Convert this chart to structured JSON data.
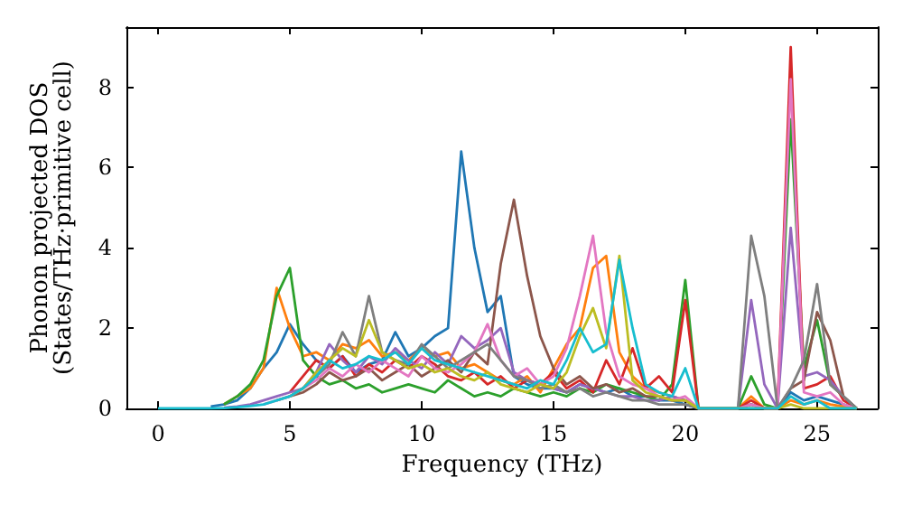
{
  "chart_data": {
    "type": "line",
    "xlabel": "Frequency (THz)",
    "ylabel": "Phonon projected DOS\n(States/THz·primitive cell)",
    "x": [
      0,
      0.5,
      1,
      1.5,
      2,
      2.5,
      3,
      3.5,
      4,
      4.5,
      5,
      5.5,
      6,
      6.5,
      7,
      7.5,
      8,
      8.5,
      9,
      9.5,
      10,
      10.5,
      11,
      11.5,
      12,
      12.5,
      13,
      13.5,
      14,
      14.5,
      15,
      15.5,
      16,
      16.5,
      17,
      17.5,
      18,
      18.5,
      19,
      19.5,
      20,
      20.5,
      21,
      21.5,
      22,
      22.5,
      23,
      23.5,
      24,
      24.5,
      25,
      25.5,
      26,
      26.5
    ],
    "xlim": [
      -1.2,
      27.3
    ],
    "xticks": [
      0,
      5,
      10,
      15,
      20,
      25
    ],
    "ylim": [
      0,
      9.5
    ],
    "yticks": [
      0,
      2,
      4,
      6,
      8
    ],
    "grid": false,
    "marker": "none",
    "series": [
      {
        "color": "#1f77b4",
        "values": [
          null,
          null,
          null,
          null,
          0.05,
          0.1,
          0.2,
          0.5,
          1.0,
          1.4,
          2.1,
          1.6,
          1.2,
          1.0,
          1.3,
          0.9,
          1.1,
          1.2,
          1.9,
          1.3,
          1.5,
          1.8,
          2.0,
          6.4,
          4.0,
          2.4,
          2.8,
          0.8,
          0.6,
          0.5,
          0.5,
          0.4,
          0.6,
          0.5,
          0.4,
          0.5,
          0.3,
          0.3,
          0.2,
          0.2,
          0.1,
          0,
          0,
          0,
          0,
          0.1,
          0,
          0,
          0.4,
          0.2,
          0.3,
          0.2,
          0.1,
          0
        ]
      },
      {
        "color": "#ff7f0e",
        "values": [
          null,
          null,
          null,
          null,
          null,
          0.1,
          0.3,
          0.5,
          1.0,
          3.0,
          2.0,
          1.3,
          1.4,
          1.2,
          1.6,
          1.5,
          1.7,
          1.3,
          1.4,
          1.2,
          1.5,
          1.3,
          1.4,
          1.0,
          1.1,
          0.9,
          0.7,
          0.6,
          0.8,
          0.4,
          1.0,
          1.6,
          2.0,
          3.5,
          3.8,
          1.4,
          0.8,
          0.5,
          0.4,
          0.3,
          0.2,
          0,
          0,
          0,
          0,
          0.3,
          0,
          0,
          0.2,
          0.1,
          0.2,
          0.1,
          0.05,
          0
        ]
      },
      {
        "color": "#2ca02c",
        "values": [
          null,
          null,
          null,
          null,
          null,
          0.1,
          0.3,
          0.6,
          1.2,
          2.8,
          3.5,
          1.2,
          0.8,
          0.6,
          0.7,
          0.5,
          0.6,
          0.4,
          0.5,
          0.6,
          0.5,
          0.4,
          0.7,
          0.5,
          0.3,
          0.4,
          0.3,
          0.5,
          0.4,
          0.3,
          0.4,
          0.3,
          0.5,
          0.4,
          0.6,
          0.5,
          0.4,
          0.3,
          0.2,
          0.6,
          3.2,
          0,
          0,
          0,
          0,
          0.8,
          0.1,
          0,
          7.2,
          1.0,
          2.2,
          0.6,
          0.3,
          0
        ]
      },
      {
        "color": "#d62728",
        "values": [
          null,
          null,
          null,
          null,
          null,
          null,
          null,
          null,
          null,
          null,
          0.4,
          0.8,
          1.2,
          1.0,
          1.3,
          0.8,
          1.1,
          0.9,
          1.2,
          1.0,
          1.3,
          1.1,
          0.8,
          0.7,
          0.9,
          0.6,
          0.8,
          0.5,
          0.7,
          0.6,
          0.9,
          0.5,
          0.7,
          0.4,
          1.2,
          0.6,
          1.5,
          0.5,
          0.8,
          0.4,
          2.7,
          0,
          0,
          0,
          0,
          0.2,
          0,
          0,
          9.0,
          0.5,
          0.6,
          0.8,
          0.2,
          0
        ]
      },
      {
        "color": "#9467bd",
        "values": [
          null,
          null,
          null,
          null,
          null,
          0.02,
          0.05,
          0.1,
          0.2,
          0.3,
          0.4,
          0.5,
          0.9,
          1.6,
          1.2,
          0.9,
          1.3,
          1.1,
          1.5,
          1.2,
          1.0,
          1.4,
          1.1,
          1.8,
          1.5,
          1.7,
          2.0,
          0.9,
          0.7,
          0.6,
          0.5,
          0.4,
          0.6,
          0.5,
          0.4,
          0.3,
          0.3,
          0.2,
          0.2,
          0.3,
          0.2,
          0,
          0,
          0,
          0,
          2.7,
          0.6,
          0,
          4.5,
          0.8,
          0.9,
          0.7,
          0.3,
          0
        ]
      },
      {
        "color": "#8c564b",
        "values": [
          null,
          null,
          null,
          null,
          null,
          null,
          null,
          null,
          null,
          null,
          0.3,
          0.4,
          0.6,
          0.9,
          0.7,
          0.8,
          1.0,
          0.7,
          0.9,
          1.1,
          0.8,
          1.0,
          1.2,
          0.9,
          1.4,
          1.1,
          3.6,
          5.2,
          3.3,
          1.8,
          1.0,
          0.6,
          0.8,
          0.5,
          0.6,
          0.4,
          0.5,
          0.3,
          0.3,
          0.2,
          0.2,
          0,
          0,
          0,
          0,
          0.1,
          0,
          0,
          0.5,
          0.7,
          2.4,
          1.7,
          0.3,
          0
        ]
      },
      {
        "color": "#e377c2",
        "values": [
          null,
          null,
          null,
          null,
          null,
          null,
          null,
          null,
          0.1,
          0.2,
          0.3,
          0.5,
          0.7,
          1.0,
          0.8,
          1.1,
          0.9,
          1.2,
          1.0,
          0.8,
          1.3,
          1.0,
          0.9,
          1.1,
          1.4,
          2.1,
          1.2,
          0.8,
          1.0,
          0.6,
          0.8,
          1.5,
          2.8,
          4.3,
          1.9,
          0.8,
          0.6,
          0.5,
          0.3,
          0.2,
          0.3,
          0,
          0,
          0,
          0,
          0.1,
          0,
          0,
          8.2,
          0.4,
          0.3,
          0.4,
          0.1,
          0
        ]
      },
      {
        "color": "#7f7f7f",
        "values": [
          null,
          null,
          null,
          null,
          null,
          null,
          null,
          null,
          null,
          0.2,
          0.3,
          0.5,
          0.8,
          1.1,
          1.9,
          1.3,
          2.8,
          1.4,
          1.2,
          1.1,
          1.6,
          1.3,
          1.0,
          1.2,
          1.4,
          1.6,
          1.2,
          0.8,
          0.7,
          0.5,
          0.6,
          0.4,
          0.5,
          0.3,
          0.4,
          0.3,
          0.2,
          0.2,
          0.1,
          0.1,
          0.1,
          0,
          0,
          0,
          0,
          4.3,
          2.8,
          0,
          0.5,
          1.2,
          3.1,
          0.6,
          0.3,
          0
        ]
      },
      {
        "color": "#bcbd22",
        "values": [
          null,
          null,
          null,
          null,
          null,
          null,
          null,
          null,
          null,
          null,
          0.3,
          0.5,
          0.9,
          1.2,
          1.5,
          1.3,
          2.2,
          1.4,
          1.2,
          1.0,
          1.1,
          0.9,
          1.0,
          0.8,
          0.7,
          0.9,
          0.6,
          0.5,
          0.4,
          0.6,
          0.5,
          0.9,
          1.8,
          2.5,
          1.5,
          3.8,
          0.7,
          0.4,
          0.3,
          0.2,
          0.2,
          0,
          0,
          0,
          0,
          0,
          0,
          0,
          0.1,
          0,
          0,
          0,
          0,
          0
        ]
      },
      {
        "color": "#17becf",
        "values": [
          0,
          0,
          0,
          0,
          0,
          0.01,
          0.03,
          0.06,
          0.1,
          0.2,
          0.3,
          0.5,
          0.8,
          1.2,
          1.0,
          1.1,
          1.3,
          1.2,
          1.4,
          1.1,
          1.5,
          1.2,
          1.1,
          1.0,
          0.9,
          0.8,
          0.7,
          0.6,
          0.5,
          0.7,
          0.6,
          1.2,
          2.0,
          1.4,
          1.6,
          3.7,
          2.0,
          0.6,
          0.4,
          0.3,
          1.0,
          0,
          0,
          0,
          0,
          0,
          0,
          0,
          0.3,
          0.1,
          0.2,
          0,
          0,
          0
        ]
      }
    ]
  }
}
